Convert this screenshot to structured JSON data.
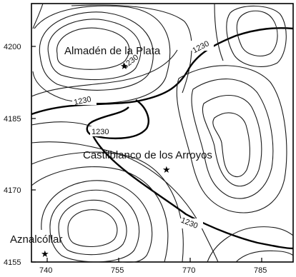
{
  "map": {
    "x_ticks": [
      "740",
      "755",
      "770",
      "785"
    ],
    "y_ticks": [
      "4200",
      "4185",
      "4170",
      "4155"
    ],
    "places": {
      "almaden": "Almadén de la Plata",
      "castilblanco": "Castilblanco de los Arroyos",
      "aznalcollar": "Aznalcóllar"
    },
    "contour_labels": {
      "left_middle": "1230",
      "top_right": "1230",
      "lower_left": "1230",
      "bottom_right": "1230",
      "almaden_inner": "1230"
    },
    "star_symbol": "★"
  }
}
